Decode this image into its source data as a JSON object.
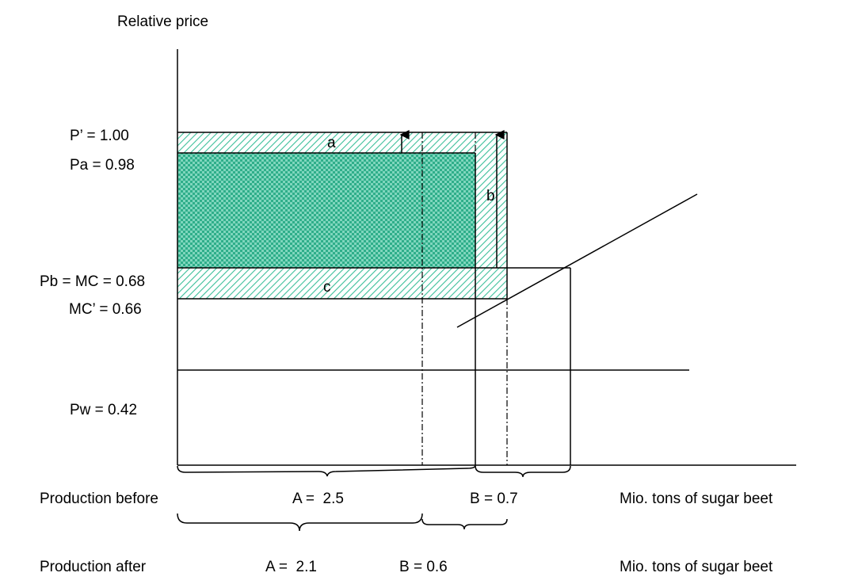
{
  "axis_label": "Relative price",
  "price_labels": [
    "P’ = 1.00",
    "Pa = 0.98",
    "Pb = MC = 0.68",
    "MC’ = 0.66",
    "Pw = 0.42"
  ],
  "area_labels": [
    "a",
    "b",
    "c"
  ],
  "rows": [
    {
      "label": "Production before",
      "A": "A =  2.5",
      "B": "B = 0.7",
      "unit": "Mio. tons of sugar beet"
    },
    {
      "label": "Production after",
      "A": "A =  2.1",
      "B": "B = 0.6",
      "unit": "Mio. tons of sugar beet"
    }
  ]
}
